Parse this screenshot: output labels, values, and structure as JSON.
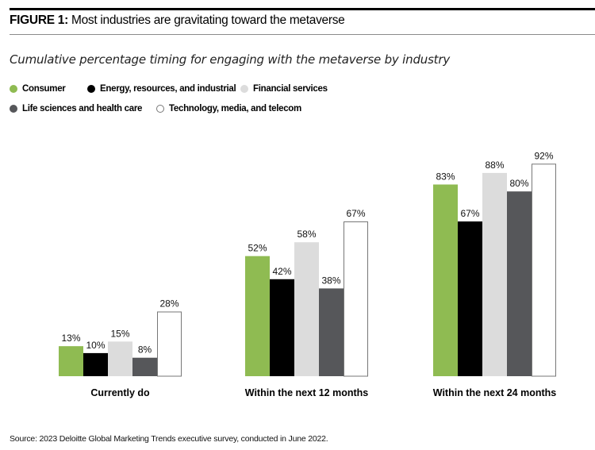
{
  "figure": {
    "label": "FIGURE 1:",
    "title": "Most industries are gravitating toward the metaverse",
    "subtitle": "Cumulative percentage timing for engaging with the metaverse by industry",
    "source": "Source: 2023 Deloitte Global Marketing Trends executive survey, conducted in June 2022."
  },
  "legend": [
    {
      "name": "Consumer",
      "color": "#8fbb52",
      "border": "#8fbb52"
    },
    {
      "name": "Energy, resources, and industrial",
      "color": "#000000",
      "border": "#000000"
    },
    {
      "name": "Financial services",
      "color": "#dcdcdc",
      "border": "#dcdcdc"
    },
    {
      "name": "Life sciences and health care",
      "color": "#56575a",
      "border": "#56575a"
    },
    {
      "name": "Technology, media, and telecom",
      "color": "#ffffff",
      "border": "#777777"
    }
  ],
  "chart_data": {
    "type": "bar",
    "title": "Most industries are gravitating toward the metaverse",
    "subtitle": "Cumulative percentage timing for engaging with the metaverse by industry",
    "xlabel": "",
    "ylabel": "",
    "ylim": [
      0,
      100
    ],
    "grid": false,
    "legend_position": "top-left",
    "categories": [
      "Currently do",
      "Within the next 12 months",
      "Within the next 24 months"
    ],
    "series": [
      {
        "name": "Consumer",
        "values": [
          13,
          52,
          83
        ]
      },
      {
        "name": "Energy, resources, and industrial",
        "values": [
          10,
          42,
          67
        ]
      },
      {
        "name": "Financial services",
        "values": [
          15,
          58,
          88
        ]
      },
      {
        "name": "Life sciences and health care",
        "values": [
          8,
          38,
          80
        ]
      },
      {
        "name": "Technology, media, and telecom",
        "values": [
          28,
          67,
          92
        ]
      }
    ],
    "value_suffix": "%"
  }
}
